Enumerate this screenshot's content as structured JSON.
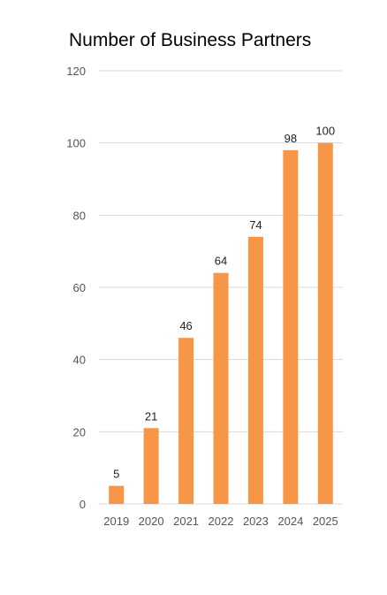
{
  "chart_data": {
    "type": "bar",
    "title": "Number of Business Partners",
    "categories": [
      "2019",
      "2020",
      "2021",
      "2022",
      "2023",
      "2024",
      "2025"
    ],
    "values": [
      5,
      21,
      46,
      64,
      74,
      98,
      100
    ],
    "yticks": [
      0,
      20,
      40,
      60,
      80,
      100,
      120
    ],
    "ylim": [
      0,
      120
    ],
    "xlabel": "",
    "ylabel": "",
    "grid": true,
    "legend": "none",
    "bar_color": "#F79646",
    "grid_color": "#D9D9D9"
  }
}
